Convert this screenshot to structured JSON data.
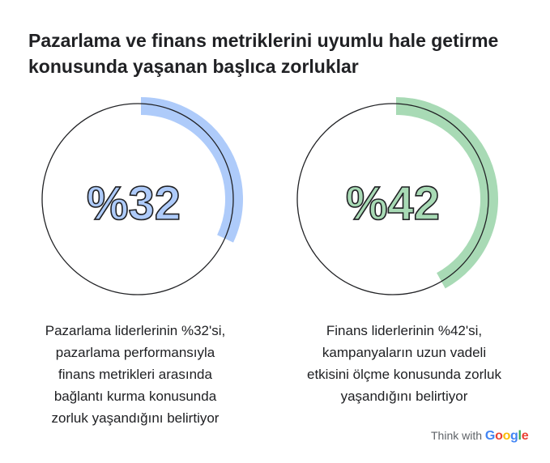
{
  "title": {
    "line1": "Pazarlama ve finans metriklerini uyumlu hale getirme",
    "line2": "konusunda yaşanan başlıca zorluklar"
  },
  "chart_data": [
    {
      "type": "pie",
      "style": "progress-ring",
      "value": 32,
      "max": 100,
      "label": "%32",
      "color": "#aecbfa",
      "caption": [
        "Pazarlama liderlerinin %32'si,",
        "pazarlama performansıyla",
        "finans metrikleri arasında",
        "bağlantı kurma konusunda",
        "zorluk yaşandığını belirtiyor"
      ]
    },
    {
      "type": "pie",
      "style": "progress-ring",
      "value": 42,
      "max": 100,
      "label": "%42",
      "color": "#a8dab5",
      "caption": [
        "Finans liderlerinin %42'si,",
        "kampanyaların uzun vadeli",
        "etkisini ölçme konusunda zorluk",
        "yaşandığını belirtiyor"
      ]
    }
  ],
  "footer": {
    "brand_prefix": "Think with",
    "brand_logo": [
      "G",
      "o",
      "o",
      "g",
      "l",
      "e"
    ],
    "brand_colors": [
      "#4285f4",
      "#ea4335",
      "#fbbc05",
      "#4285f4",
      "#34a853",
      "#ea4335"
    ]
  }
}
